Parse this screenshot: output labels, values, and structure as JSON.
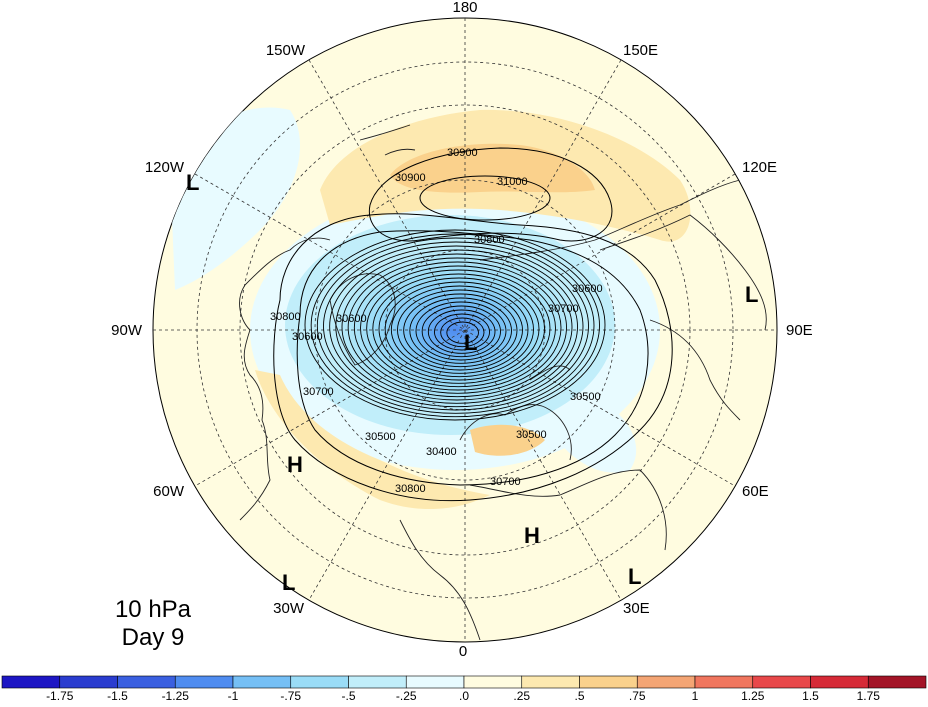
{
  "map": {
    "projection": "north polar stereographic",
    "level_label": "10 hPa",
    "day_label": "Day 9",
    "lon_labels": {
      "top": "180",
      "bottom": "0",
      "left": "90W",
      "right": "90E",
      "upper_left": "150W",
      "upper_right": "150E",
      "left_upper": "120W",
      "right_upper": "120E",
      "left_lower": "60W",
      "right_lower": "60E",
      "lower_left": "30W",
      "lower_right": "30E"
    },
    "contour_labels": [
      "30900",
      "30900",
      "31000",
      "30800",
      "30600",
      "30800",
      "30600",
      "30700",
      "30500",
      "30400",
      "30500",
      "30700",
      "30800",
      "30500",
      "30600",
      "30700"
    ],
    "pressure_centers": {
      "low_pole": "L",
      "low_120w": "L",
      "low_90e": "L",
      "low_30w": "L",
      "low_30e": "L",
      "high_60w": "H",
      "high_africa": "H"
    }
  },
  "colorbar": {
    "colors": [
      "#1d16c4",
      "#2a3ccf",
      "#3a5fe0",
      "#4f8cf0",
      "#75bff5",
      "#9adcf7",
      "#c1eefa",
      "#e8fbff",
      "#fffce0",
      "#fde9b0",
      "#fad18c",
      "#f4a574",
      "#f0765e",
      "#e8484a",
      "#d62a37",
      "#a31427"
    ],
    "ticks": [
      "-1.75",
      "-1.5",
      "-1.25",
      "-1",
      "-.75",
      "-.5",
      "-.25",
      ".0",
      ".25",
      ".5",
      ".75",
      "1",
      "1.25",
      "1.5",
      "1.75"
    ]
  }
}
